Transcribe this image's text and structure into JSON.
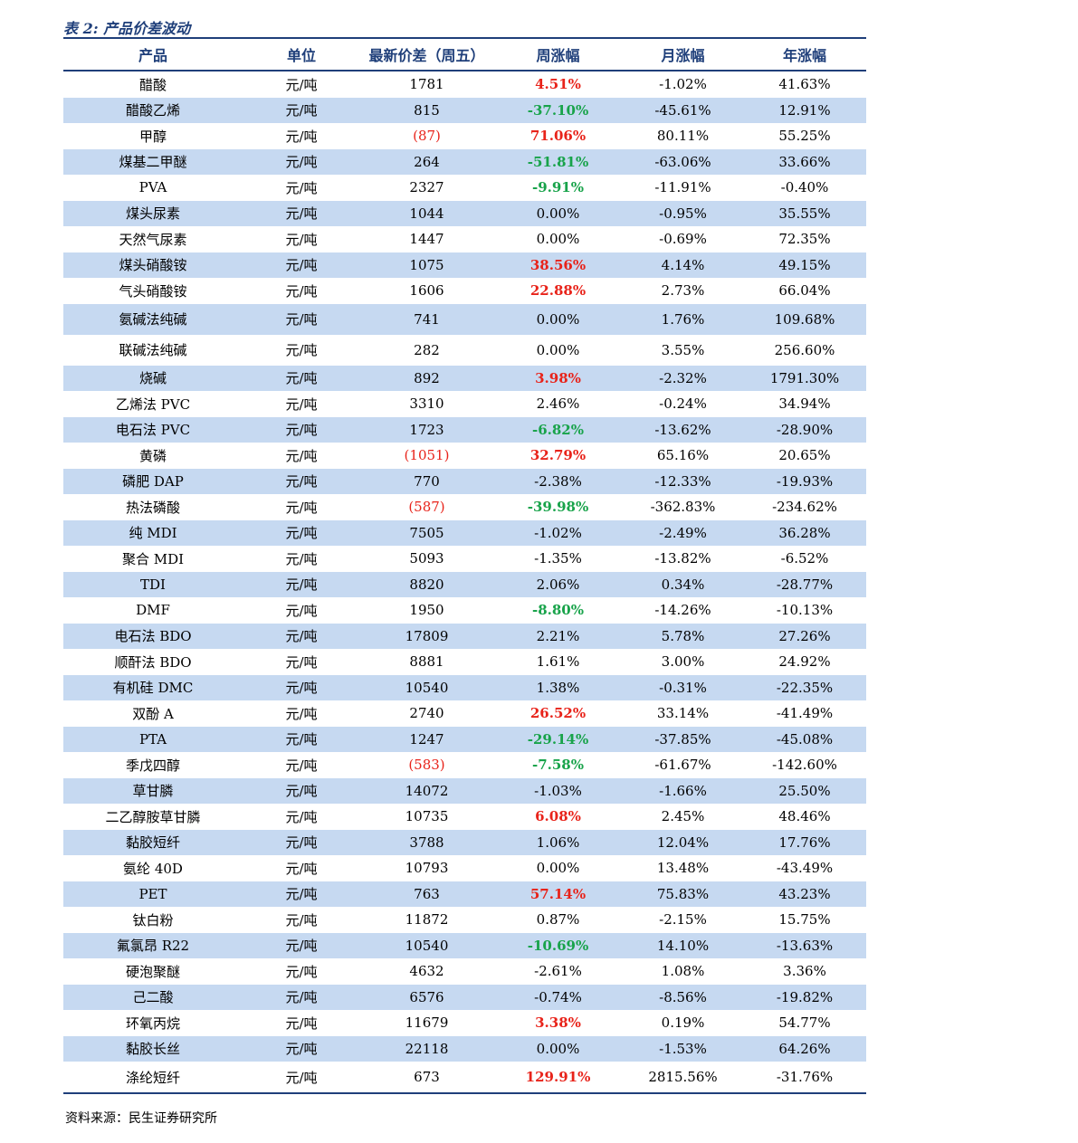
{
  "title": "表 2:  产品价差波动",
  "headers": [
    "产品",
    "单位",
    "最新价差（周五）",
    "周涨幅",
    "月涨幅",
    "年涨幅"
  ],
  "rows": [
    {
      "product": "醋酸",
      "unit": "元/吨",
      "spread": "1781",
      "spread_neg": false,
      "week": "4.51%",
      "week_dir": "up",
      "month": "-1.02%",
      "year": "41.63%"
    },
    {
      "product": "醋酸乙烯",
      "unit": "元/吨",
      "spread": "815",
      "spread_neg": false,
      "week": "-37.10%",
      "week_dir": "down",
      "month": "-45.61%",
      "year": "12.91%"
    },
    {
      "product": "甲醇",
      "unit": "元/吨",
      "spread": "(87)",
      "spread_neg": true,
      "week": "71.06%",
      "week_dir": "up",
      "month": "80.11%",
      "year": "55.25%"
    },
    {
      "product": "煤基二甲醚",
      "unit": "元/吨",
      "spread": "264",
      "spread_neg": false,
      "week": "-51.81%",
      "week_dir": "down",
      "month": "-63.06%",
      "year": "33.66%"
    },
    {
      "product": "PVA",
      "unit": "元/吨",
      "spread": "2327",
      "spread_neg": false,
      "week": "-9.91%",
      "week_dir": "down",
      "month": "-11.91%",
      "year": "-0.40%"
    },
    {
      "product": "煤头尿素",
      "unit": "元/吨",
      "spread": "1044",
      "spread_neg": false,
      "week": "0.00%",
      "week_dir": "flat",
      "month": "-0.95%",
      "year": "35.55%"
    },
    {
      "product": "天然气尿素",
      "unit": "元/吨",
      "spread": "1447",
      "spread_neg": false,
      "week": "0.00%",
      "week_dir": "flat",
      "month": "-0.69%",
      "year": "72.35%"
    },
    {
      "product": "煤头硝酸铵",
      "unit": "元/吨",
      "spread": "1075",
      "spread_neg": false,
      "week": "38.56%",
      "week_dir": "up",
      "month": "4.14%",
      "year": "49.15%"
    },
    {
      "product": "气头硝酸铵",
      "unit": "元/吨",
      "spread": "1606",
      "spread_neg": false,
      "week": "22.88%",
      "week_dir": "up",
      "month": "2.73%",
      "year": "66.04%"
    },
    {
      "product": "氨碱法纯碱",
      "unit": "元/吨",
      "spread": "741",
      "spread_neg": false,
      "week": "0.00%",
      "week_dir": "flat",
      "month": "1.76%",
      "year": "109.68%",
      "tall": true
    },
    {
      "product": "联碱法纯碱",
      "unit": "元/吨",
      "spread": "282",
      "spread_neg": false,
      "week": "0.00%",
      "week_dir": "flat",
      "month": "3.55%",
      "year": "256.60%",
      "tall": true
    },
    {
      "product": "烧碱",
      "unit": "元/吨",
      "spread": "892",
      "spread_neg": false,
      "week": "3.98%",
      "week_dir": "up",
      "month": "-2.32%",
      "year": "1791.30%"
    },
    {
      "product": "乙烯法 PVC",
      "unit": "元/吨",
      "spread": "3310",
      "spread_neg": false,
      "week": "2.46%",
      "week_dir": "flat",
      "month": "-0.24%",
      "year": "34.94%"
    },
    {
      "product": "电石法 PVC",
      "unit": "元/吨",
      "spread": "1723",
      "spread_neg": false,
      "week": "-6.82%",
      "week_dir": "down",
      "month": "-13.62%",
      "year": "-28.90%"
    },
    {
      "product": "黄磷",
      "unit": "元/吨",
      "spread": "(1051)",
      "spread_neg": true,
      "week": "32.79%",
      "week_dir": "up",
      "month": "65.16%",
      "year": "20.65%"
    },
    {
      "product": "磷肥 DAP",
      "unit": "元/吨",
      "spread": "770",
      "spread_neg": false,
      "week": "-2.38%",
      "week_dir": "flat",
      "month": "-12.33%",
      "year": "-19.93%"
    },
    {
      "product": "热法磷酸",
      "unit": "元/吨",
      "spread": "(587)",
      "spread_neg": true,
      "week": "-39.98%",
      "week_dir": "down",
      "month": "-362.83%",
      "year": "-234.62%"
    },
    {
      "product": "纯 MDI",
      "unit": "元/吨",
      "spread": "7505",
      "spread_neg": false,
      "week": "-1.02%",
      "week_dir": "flat",
      "month": "-2.49%",
      "year": "36.28%"
    },
    {
      "product": "聚合 MDI",
      "unit": "元/吨",
      "spread": "5093",
      "spread_neg": false,
      "week": "-1.35%",
      "week_dir": "flat",
      "month": "-13.82%",
      "year": "-6.52%"
    },
    {
      "product": "TDI",
      "unit": "元/吨",
      "spread": "8820",
      "spread_neg": false,
      "week": "2.06%",
      "week_dir": "flat",
      "month": "0.34%",
      "year": "-28.77%"
    },
    {
      "product": "DMF",
      "unit": "元/吨",
      "spread": "1950",
      "spread_neg": false,
      "week": "-8.80%",
      "week_dir": "down",
      "month": "-14.26%",
      "year": "-10.13%"
    },
    {
      "product": "电石法 BDO",
      "unit": "元/吨",
      "spread": "17809",
      "spread_neg": false,
      "week": "2.21%",
      "week_dir": "flat",
      "month": "5.78%",
      "year": "27.26%"
    },
    {
      "product": "顺酐法 BDO",
      "unit": "元/吨",
      "spread": "8881",
      "spread_neg": false,
      "week": "1.61%",
      "week_dir": "flat",
      "month": "3.00%",
      "year": "24.92%"
    },
    {
      "product": "有机硅 DMC",
      "unit": "元/吨",
      "spread": "10540",
      "spread_neg": false,
      "week": "1.38%",
      "week_dir": "flat",
      "month": "-0.31%",
      "year": "-22.35%"
    },
    {
      "product": "双酚 A",
      "unit": "元/吨",
      "spread": "2740",
      "spread_neg": false,
      "week": "26.52%",
      "week_dir": "up",
      "month": "33.14%",
      "year": "-41.49%"
    },
    {
      "product": "PTA",
      "unit": "元/吨",
      "spread": "1247",
      "spread_neg": false,
      "week": "-29.14%",
      "week_dir": "down",
      "month": "-37.85%",
      "year": "-45.08%"
    },
    {
      "product": "季戊四醇",
      "unit": "元/吨",
      "spread": "(583)",
      "spread_neg": true,
      "week": "-7.58%",
      "week_dir": "down",
      "month": "-61.67%",
      "year": "-142.60%"
    },
    {
      "product": "草甘膦",
      "unit": "元/吨",
      "spread": "14072",
      "spread_neg": false,
      "week": "-1.03%",
      "week_dir": "flat",
      "month": "-1.66%",
      "year": "25.50%"
    },
    {
      "product": "二乙醇胺草甘膦",
      "unit": "元/吨",
      "spread": "10735",
      "spread_neg": false,
      "week": "6.08%",
      "week_dir": "up",
      "month": "2.45%",
      "year": "48.46%"
    },
    {
      "product": "黏胶短纤",
      "unit": "元/吨",
      "spread": "3788",
      "spread_neg": false,
      "week": "1.06%",
      "week_dir": "flat",
      "month": "12.04%",
      "year": "17.76%"
    },
    {
      "product": "氨纶 40D",
      "unit": "元/吨",
      "spread": "10793",
      "spread_neg": false,
      "week": "0.00%",
      "week_dir": "flat",
      "month": "13.48%",
      "year": "-43.49%"
    },
    {
      "product": "PET",
      "unit": "元/吨",
      "spread": "763",
      "spread_neg": false,
      "week": "57.14%",
      "week_dir": "up",
      "month": "75.83%",
      "year": "43.23%"
    },
    {
      "product": "钛白粉",
      "unit": "元/吨",
      "spread": "11872",
      "spread_neg": false,
      "week": "0.87%",
      "week_dir": "flat",
      "month": "-2.15%",
      "year": "15.75%"
    },
    {
      "product": "氟氯昂 R22",
      "unit": "元/吨",
      "spread": "10540",
      "spread_neg": false,
      "week": "-10.69%",
      "week_dir": "down",
      "month": "14.10%",
      "year": "-13.63%"
    },
    {
      "product": "硬泡聚醚",
      "unit": "元/吨",
      "spread": "4632",
      "spread_neg": false,
      "week": "-2.61%",
      "week_dir": "flat",
      "month": "1.08%",
      "year": "3.36%"
    },
    {
      "product": "己二酸",
      "unit": "元/吨",
      "spread": "6576",
      "spread_neg": false,
      "week": "-0.74%",
      "week_dir": "flat",
      "month": "-8.56%",
      "year": "-19.82%"
    },
    {
      "product": "环氧丙烷",
      "unit": "元/吨",
      "spread": "11679",
      "spread_neg": false,
      "week": "3.38%",
      "week_dir": "up",
      "month": "0.19%",
      "year": "54.77%"
    },
    {
      "product": "黏胶长丝",
      "unit": "元/吨",
      "spread": "22118",
      "spread_neg": false,
      "week": "0.00%",
      "week_dir": "flat",
      "month": "-1.53%",
      "year": "64.26%"
    },
    {
      "product": "涤纶短纤",
      "unit": "元/吨",
      "spread": "673",
      "spread_neg": false,
      "week": "129.91%",
      "week_dir": "up",
      "month": "2815.56%",
      "year": "-31.76%",
      "tall": true
    }
  ],
  "source": "资料来源：民生证券研究所"
}
